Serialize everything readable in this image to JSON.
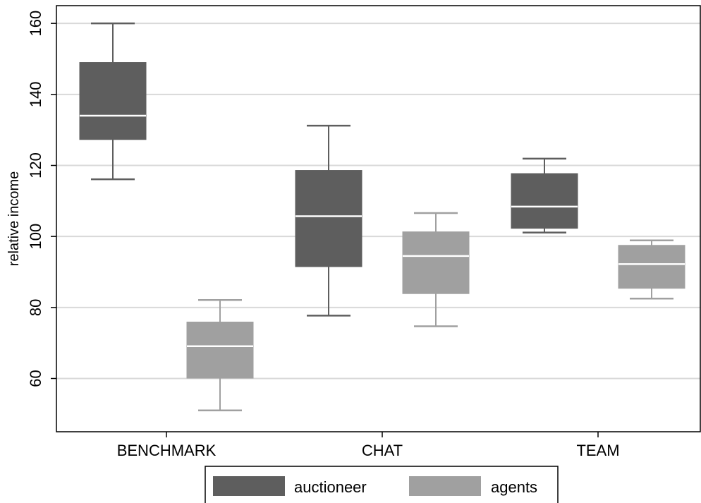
{
  "chart_data": {
    "type": "box",
    "ylabel": "relative income",
    "xlabel": "",
    "ylim": [
      45,
      165
    ],
    "yticks": [
      60,
      80,
      100,
      120,
      140,
      160
    ],
    "grid": true,
    "legend_position": "bottom-center",
    "categories": [
      "BENCHMARK",
      "CHAT",
      "TEAM"
    ],
    "series": [
      {
        "name": "auctioneer",
        "color": "#5e5e5e",
        "boxes": [
          {
            "min": 116.1,
            "q1": 127.3,
            "median": 134.0,
            "q3": 149.0,
            "max": 160.0
          },
          {
            "min": 77.7,
            "q1": 91.5,
            "median": 105.7,
            "q3": 118.6,
            "max": 131.2
          },
          {
            "min": 101.1,
            "q1": 102.3,
            "median": 108.4,
            "q3": 117.7,
            "max": 121.9
          }
        ]
      },
      {
        "name": "agents",
        "color": "#a0a0a0",
        "boxes": [
          {
            "min": 51.0,
            "q1": 60.1,
            "median": 69.1,
            "q3": 75.9,
            "max": 82.1
          },
          {
            "min": 74.7,
            "q1": 83.9,
            "median": 94.5,
            "q3": 101.3,
            "max": 106.6
          },
          {
            "min": 82.5,
            "q1": 85.4,
            "median": 92.2,
            "q3": 97.5,
            "max": 98.9
          }
        ]
      }
    ]
  }
}
